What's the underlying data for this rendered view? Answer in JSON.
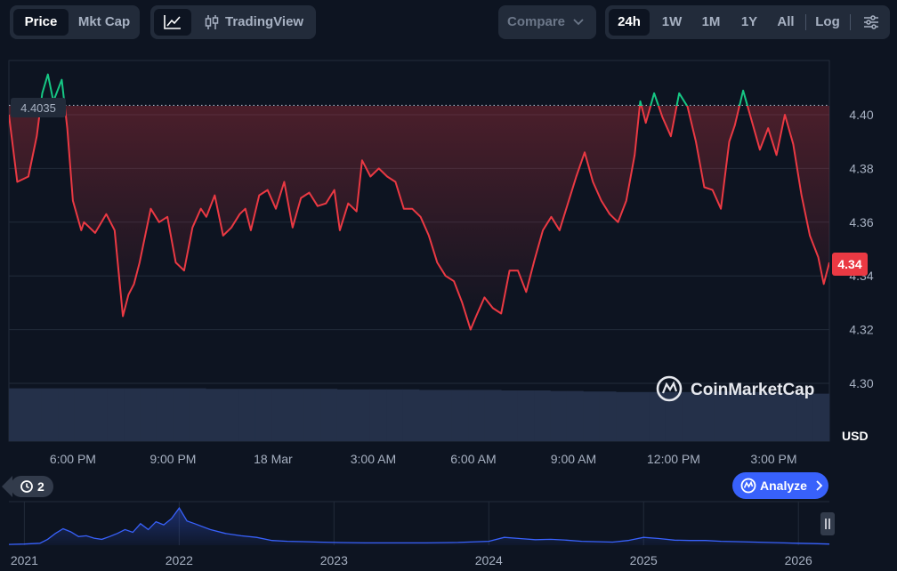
{
  "toolbar": {
    "price_tab": "Price",
    "mktcap_tab": "Mkt Cap",
    "line_chart_icon": "line-chart-icon",
    "tradingview_icon": "candlestick-icon",
    "tradingview_label": "TradingView",
    "compare_label": "Compare",
    "ranges": [
      "24h",
      "1W",
      "1M",
      "1Y",
      "All"
    ],
    "active_range": "24h",
    "log_label": "Log",
    "settings_icon": "sliders-icon"
  },
  "colors": {
    "background": "#0d1421",
    "up": "#16c784",
    "down": "#ea3943",
    "volume": "#243049",
    "overview_line": "#3861fb",
    "grid": "#222b3a",
    "accent": "#3861fb"
  },
  "chart_data": {
    "type": "line",
    "ylabel": "USD",
    "ylim": [
      4.29,
      4.41
    ],
    "yticks": [
      "4.30",
      "4.32",
      "4.34",
      "4.36",
      "4.38",
      "4.40"
    ],
    "xlim": [
      "2026-03-17T16:05",
      "2026-03-18T16:40"
    ],
    "xtick_positions": [
      "2026-03-17T18:00",
      "2026-03-17T21:00",
      "2026-03-18T00:00",
      "2026-03-18T03:00",
      "2026-03-18T06:00",
      "2026-03-18T09:00",
      "2026-03-18T12:00",
      "2026-03-18T15:00"
    ],
    "xticks": [
      "6:00 PM",
      "9:00 PM",
      "18 Mar",
      "3:00 AM",
      "6:00 AM",
      "9:00 AM",
      "12:00 PM",
      "3:00 PM"
    ],
    "reference_price": 4.4035,
    "reference_label": "4.4035",
    "current_price_label": "4.34",
    "grid": true,
    "watermark": "CoinMarketCap",
    "series": [
      {
        "x": [
          "2026-03-17T16:05",
          "2026-03-17T16:20",
          "2026-03-17T16:40",
          "2026-03-17T16:55",
          "2026-03-17T17:05",
          "2026-03-17T17:15",
          "2026-03-17T17:25",
          "2026-03-17T17:40",
          "2026-03-17T17:50",
          "2026-03-17T18:00",
          "2026-03-17T18:15",
          "2026-03-17T18:20",
          "2026-03-17T18:30",
          "2026-03-17T18:40",
          "2026-03-17T19:00",
          "2026-03-17T19:15",
          "2026-03-17T19:30",
          "2026-03-17T19:40",
          "2026-03-17T19:50",
          "2026-03-17T20:00",
          "2026-03-17T20:20",
          "2026-03-17T20:35",
          "2026-03-17T20:50",
          "2026-03-17T21:05",
          "2026-03-17T21:20",
          "2026-03-17T21:35",
          "2026-03-17T21:50",
          "2026-03-17T22:00",
          "2026-03-17T22:15",
          "2026-03-17T22:30",
          "2026-03-17T22:45",
          "2026-03-17T23:00",
          "2026-03-17T23:10",
          "2026-03-17T23:20",
          "2026-03-17T23:35",
          "2026-03-17T23:50",
          "2026-03-18T00:05",
          "2026-03-18T00:20",
          "2026-03-18T00:35",
          "2026-03-18T00:50",
          "2026-03-18T01:05",
          "2026-03-18T01:20",
          "2026-03-18T01:35",
          "2026-03-18T01:50",
          "2026-03-18T02:00",
          "2026-03-18T02:15",
          "2026-03-18T02:30",
          "2026-03-18T02:40",
          "2026-03-18T02:55",
          "2026-03-18T03:10",
          "2026-03-18T03:25",
          "2026-03-18T03:40",
          "2026-03-18T03:55",
          "2026-03-18T04:10",
          "2026-03-18T04:25",
          "2026-03-18T04:40",
          "2026-03-18T04:55",
          "2026-03-18T05:10",
          "2026-03-18T05:25",
          "2026-03-18T05:40",
          "2026-03-18T05:55",
          "2026-03-18T06:05",
          "2026-03-18T06:20",
          "2026-03-18T06:35",
          "2026-03-18T06:50",
          "2026-03-18T07:05",
          "2026-03-18T07:20",
          "2026-03-18T07:35",
          "2026-03-18T07:50",
          "2026-03-18T08:05",
          "2026-03-18T08:20",
          "2026-03-18T08:35",
          "2026-03-18T08:50",
          "2026-03-18T09:05",
          "2026-03-18T09:20",
          "2026-03-18T09:35",
          "2026-03-18T09:50",
          "2026-03-18T10:05",
          "2026-03-18T10:20",
          "2026-03-18T10:35",
          "2026-03-18T10:50",
          "2026-03-18T11:00",
          "2026-03-18T11:10",
          "2026-03-18T11:25",
          "2026-03-18T11:40",
          "2026-03-18T11:55",
          "2026-03-18T12:10",
          "2026-03-18T12:25",
          "2026-03-18T12:40",
          "2026-03-18T12:55",
          "2026-03-18T13:10",
          "2026-03-18T13:25",
          "2026-03-18T13:40",
          "2026-03-18T13:50",
          "2026-03-18T14:05",
          "2026-03-18T14:20",
          "2026-03-18T14:35",
          "2026-03-18T14:50",
          "2026-03-18T15:05",
          "2026-03-18T15:20",
          "2026-03-18T15:35",
          "2026-03-18T15:50",
          "2026-03-18T16:05",
          "2026-03-18T16:20",
          "2026-03-18T16:30",
          "2026-03-18T16:40"
        ],
        "values": [
          4.4,
          4.375,
          4.377,
          4.392,
          4.408,
          4.415,
          4.405,
          4.413,
          4.395,
          4.368,
          4.357,
          4.36,
          4.358,
          4.356,
          4.363,
          4.357,
          4.325,
          4.333,
          4.337,
          4.345,
          4.365,
          4.36,
          4.362,
          4.345,
          4.342,
          4.358,
          4.365,
          4.362,
          4.37,
          4.355,
          4.358,
          4.363,
          4.365,
          4.357,
          4.37,
          4.372,
          4.365,
          4.375,
          4.358,
          4.369,
          4.371,
          4.366,
          4.367,
          4.372,
          4.357,
          4.367,
          4.364,
          4.383,
          4.377,
          4.38,
          4.377,
          4.375,
          4.365,
          4.365,
          4.362,
          4.355,
          4.345,
          4.34,
          4.338,
          4.33,
          4.32,
          4.325,
          4.332,
          4.328,
          4.326,
          4.342,
          4.342,
          4.334,
          4.346,
          4.357,
          4.362,
          4.357,
          4.367,
          4.377,
          4.386,
          4.375,
          4.368,
          4.363,
          4.36,
          4.368,
          4.385,
          4.405,
          4.397,
          4.408,
          4.399,
          4.392,
          4.408,
          4.403,
          4.39,
          4.373,
          4.372,
          4.365,
          4.39,
          4.396,
          4.409,
          4.398,
          4.387,
          4.395,
          4.385,
          4.4,
          4.389,
          4.37,
          4.355,
          4.347,
          4.337,
          4.345
        ]
      }
    ],
    "volume": {
      "ylim": [
        0,
        1
      ],
      "values": [
        0.99,
        0.99,
        0.99,
        0.99,
        0.99,
        0.99,
        0.99,
        0.99,
        0.99,
        0.99,
        0.99,
        0.99,
        0.98,
        0.98,
        0.98,
        0.98,
        0.98,
        0.98,
        0.98,
        0.98,
        0.97,
        0.97,
        0.97,
        0.97,
        0.97,
        0.96,
        0.96,
        0.96,
        0.96,
        0.96,
        0.95,
        0.95,
        0.95,
        0.94,
        0.94,
        0.93,
        0.93,
        0.92,
        0.92,
        0.92,
        0.92,
        0.92,
        0.92,
        0.93,
        0.93,
        0.92,
        0.92,
        0.9,
        0.9,
        0.89
      ]
    },
    "overview": {
      "type": "area",
      "xticks": [
        "2021",
        "2022",
        "2023",
        "2024",
        "2025",
        "2026"
      ],
      "xlim": [
        2020.9,
        2026.2
      ],
      "ylim": [
        0,
        1
      ],
      "x": [
        2020.9,
        2021.0,
        2021.1,
        2021.15,
        2021.2,
        2021.25,
        2021.3,
        2021.35,
        2021.4,
        2021.45,
        2021.5,
        2021.55,
        2021.6,
        2021.65,
        2021.7,
        2021.75,
        2021.8,
        2021.85,
        2021.9,
        2021.95,
        2022.0,
        2022.05,
        2022.1,
        2022.2,
        2022.3,
        2022.4,
        2022.5,
        2022.6,
        2022.7,
        2022.8,
        2022.9,
        2023.0,
        2023.2,
        2023.4,
        2023.6,
        2023.8,
        2024.0,
        2024.1,
        2024.2,
        2024.3,
        2024.4,
        2024.5,
        2024.6,
        2024.8,
        2024.9,
        2025.0,
        2025.1,
        2025.2,
        2025.3,
        2025.4,
        2025.5,
        2025.6,
        2025.8,
        2026.0,
        2026.1,
        2026.2
      ],
      "values": [
        0.02,
        0.03,
        0.05,
        0.15,
        0.3,
        0.42,
        0.34,
        0.22,
        0.24,
        0.18,
        0.15,
        0.22,
        0.3,
        0.4,
        0.33,
        0.55,
        0.4,
        0.6,
        0.52,
        0.68,
        0.95,
        0.62,
        0.55,
        0.4,
        0.3,
        0.24,
        0.2,
        0.12,
        0.1,
        0.09,
        0.08,
        0.07,
        0.06,
        0.06,
        0.06,
        0.07,
        0.1,
        0.2,
        0.17,
        0.14,
        0.15,
        0.13,
        0.1,
        0.08,
        0.12,
        0.2,
        0.17,
        0.13,
        0.12,
        0.12,
        0.1,
        0.09,
        0.07,
        0.05,
        0.04,
        0.03
      ]
    }
  },
  "controls": {
    "history_count": "2",
    "history_icon": "history-icon",
    "analyze_label": "Analyze",
    "analyze_icon": "coinmarketcap-logo-icon",
    "pause_icon": "pause-icon"
  }
}
